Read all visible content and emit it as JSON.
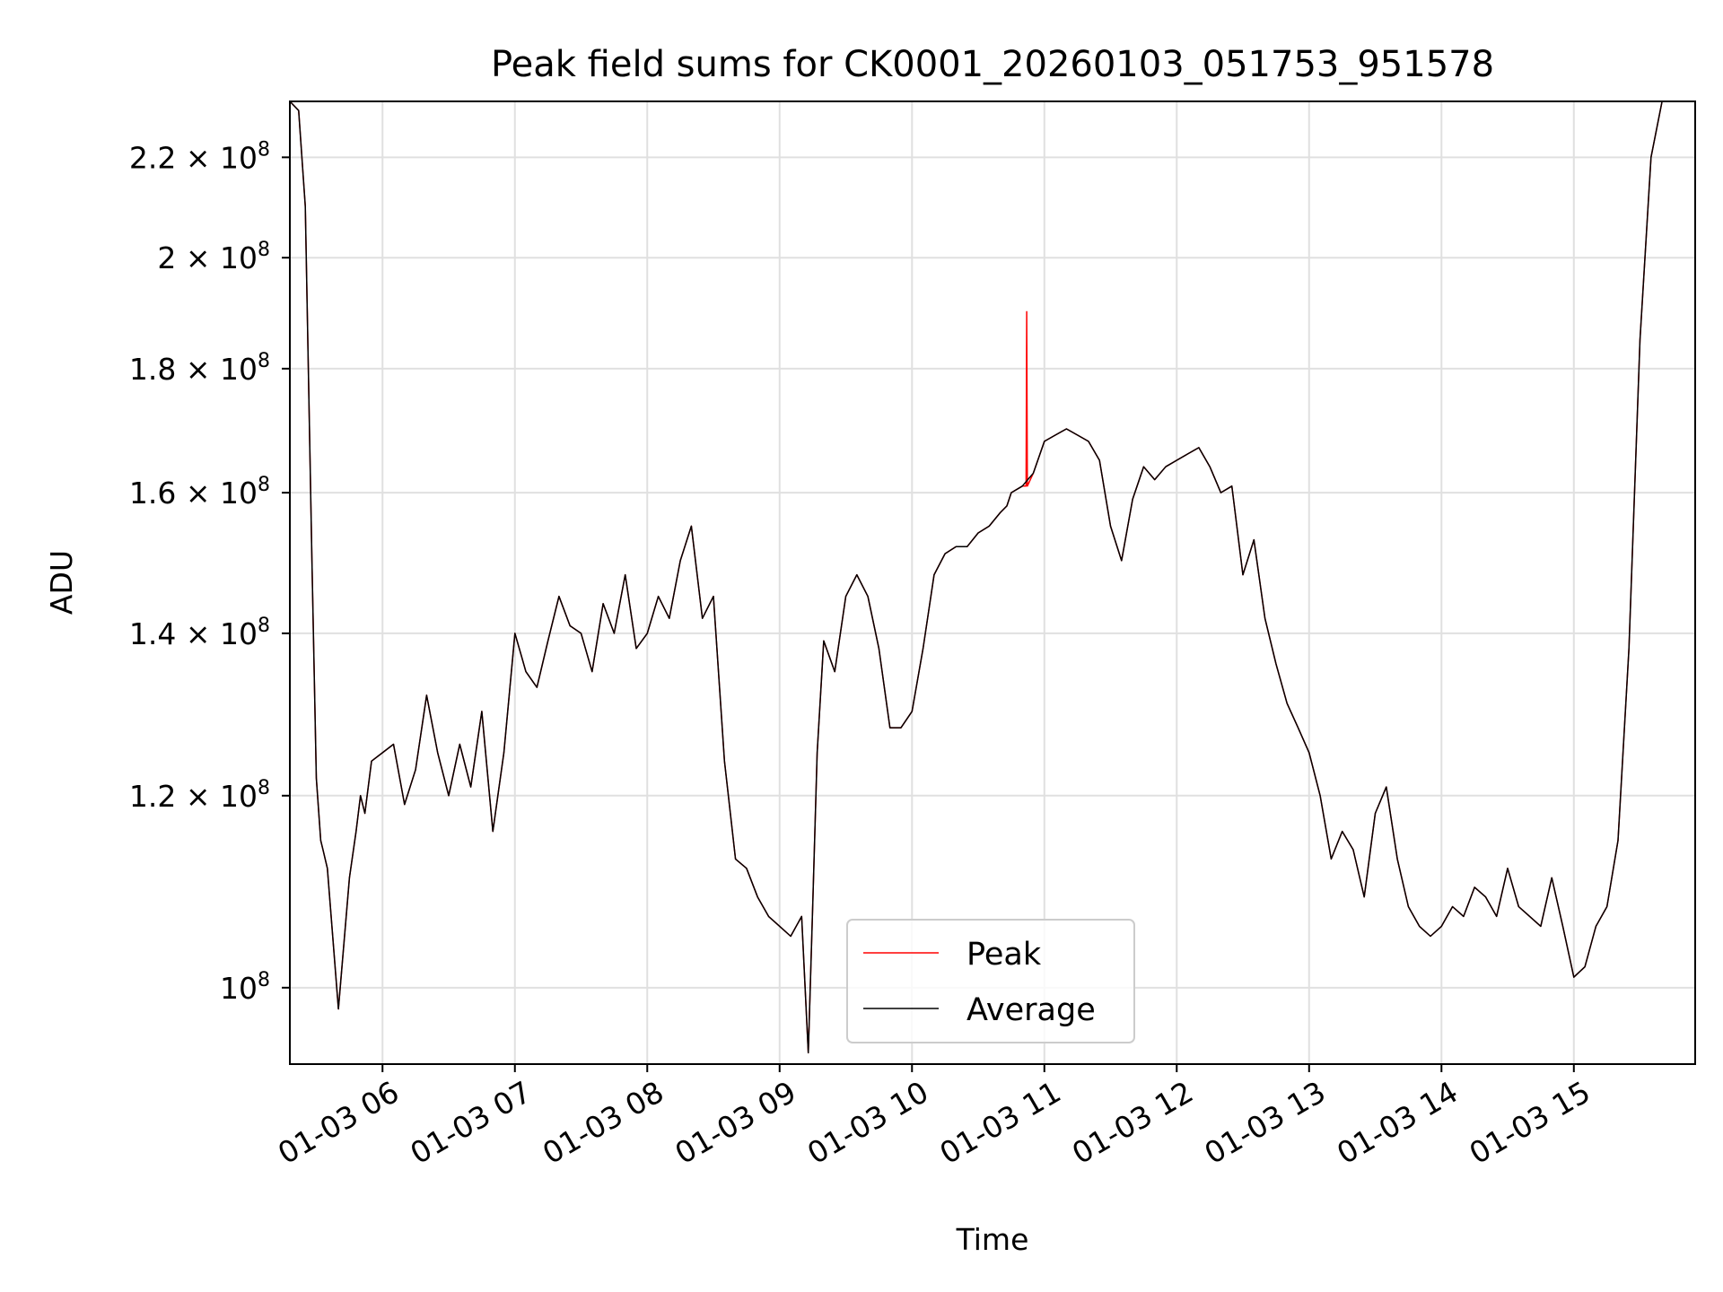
{
  "chart_data": {
    "type": "line",
    "title": "Peak field sums for CK0001_20260103_051753_951578",
    "xlabel": "Time",
    "ylabel": "ADU",
    "yscale": "log",
    "ylim": [
      93000000,
      232000000
    ],
    "xlim": [
      "2026-01-03 05:18",
      "2026-01-03 15:55"
    ],
    "grid": true,
    "legend_position": "bottom-center",
    "x_ticks": [
      "01-03 06",
      "01-03 07",
      "01-03 08",
      "01-03 09",
      "01-03 10",
      "01-03 11",
      "01-03 12",
      "01-03 13",
      "01-03 14",
      "01-03 15"
    ],
    "y_ticks": [
      {
        "value": 100000000,
        "mantissa": "",
        "exponent": "8",
        "base": "10"
      },
      {
        "value": 120000000,
        "mantissa": "1.2 × ",
        "exponent": "8",
        "base": "10"
      },
      {
        "value": 140000000,
        "mantissa": "1.4 × ",
        "exponent": "8",
        "base": "10"
      },
      {
        "value": 160000000,
        "mantissa": "1.6 × ",
        "exponent": "8",
        "base": "10"
      },
      {
        "value": 180000000,
        "mantissa": "1.8 × ",
        "exponent": "8",
        "base": "10"
      },
      {
        "value": 200000000,
        "mantissa": "2 × ",
        "exponent": "8",
        "base": "10"
      },
      {
        "value": 220000000,
        "mantissa": "2.2 × ",
        "exponent": "8",
        "base": "10"
      }
    ],
    "series": [
      {
        "name": "Peak",
        "color": "#ff0000"
      },
      {
        "name": "Average",
        "color": "#000000"
      }
    ],
    "x": [
      "05:18",
      "05:22",
      "05:25",
      "05:28",
      "05:30",
      "05:32",
      "05:33",
      "05:35",
      "05:40",
      "05:45",
      "05:48",
      "05:50",
      "05:52",
      "05:55",
      "06:00",
      "06:05",
      "06:10",
      "06:15",
      "06:20",
      "06:25",
      "06:30",
      "06:35",
      "06:40",
      "06:45",
      "06:50",
      "06:55",
      "07:00",
      "07:03",
      "07:05",
      "07:10",
      "07:15",
      "07:20",
      "07:25",
      "07:30",
      "07:35",
      "07:40",
      "07:45",
      "07:50",
      "07:55",
      "08:00",
      "08:05",
      "08:10",
      "08:15",
      "08:20",
      "08:25",
      "08:30",
      "08:35",
      "08:40",
      "08:45",
      "08:50",
      "08:55",
      "09:00",
      "09:05",
      "09:10",
      "09:13",
      "09:15",
      "09:17",
      "09:20",
      "09:25",
      "09:30",
      "09:35",
      "09:40",
      "09:45",
      "09:50",
      "09:55",
      "10:00",
      "10:05",
      "10:10",
      "10:15",
      "10:20",
      "10:25",
      "10:30",
      "10:35",
      "10:40",
      "10:43",
      "10:45",
      "10:50",
      "10:55",
      "11:00",
      "11:05",
      "11:10",
      "11:15",
      "11:20",
      "11:25",
      "11:30",
      "11:35",
      "11:40",
      "11:45",
      "11:50",
      "11:55",
      "12:00",
      "12:05",
      "12:10",
      "12:15",
      "12:20",
      "12:25",
      "12:30",
      "12:35",
      "12:40",
      "12:45",
      "12:50",
      "12:55",
      "13:00",
      "13:05",
      "13:10",
      "13:15",
      "13:20",
      "13:25",
      "13:30",
      "13:35",
      "13:40",
      "13:45",
      "13:50",
      "13:55",
      "14:00",
      "14:05",
      "14:10",
      "14:15",
      "14:20",
      "14:25",
      "14:30",
      "14:35",
      "14:40",
      "14:45",
      "14:50",
      "14:55",
      "15:00",
      "15:05",
      "15:10",
      "15:15",
      "15:20",
      "15:25",
      "15:30",
      "15:35",
      "15:40",
      "15:45",
      "15:50",
      "15:55"
    ],
    "y_average": [
      232000000,
      230000000,
      210000000,
      150000000,
      122000000,
      115000000,
      114000000,
      112000000,
      98000000,
      111000000,
      116000000,
      120000000,
      118000000,
      124000000,
      125000000,
      126000000,
      119000000,
      123000000,
      132000000,
      125000000,
      120000000,
      126000000,
      121000000,
      130000000,
      116000000,
      125000000,
      140000000,
      137000000,
      135000000,
      133000000,
      139000000,
      145000000,
      141000000,
      140000000,
      135000000,
      144000000,
      140000000,
      148000000,
      138000000,
      140000000,
      145000000,
      142000000,
      150000000,
      155000000,
      142000000,
      145000000,
      124000000,
      113000000,
      112000000,
      109000000,
      107000000,
      106000000,
      105000000,
      107000000,
      94000000,
      108000000,
      125000000,
      139000000,
      135000000,
      145000000,
      148000000,
      145000000,
      138000000,
      128000000,
      128000000,
      130000000,
      138000000,
      148000000,
      151000000,
      152000000,
      152000000,
      154000000,
      155000000,
      157000000,
      158000000,
      160000000,
      161000000,
      163000000,
      168000000,
      169000000,
      170000000,
      169000000,
      168000000,
      165000000,
      155000000,
      150000000,
      159000000,
      164000000,
      162000000,
      164000000,
      165000000,
      166000000,
      167000000,
      164000000,
      160000000,
      161000000,
      148000000,
      153000000,
      142000000,
      136000000,
      131000000,
      128000000,
      125000000,
      120000000,
      113000000,
      116000000,
      114000000,
      109000000,
      118000000,
      121000000,
      113000000,
      108000000,
      106000000,
      105000000,
      106000000,
      108000000,
      107000000,
      110000000,
      109000000,
      107000000,
      112000000,
      108000000,
      107000000,
      106000000,
      111000000,
      106000000,
      101000000,
      102000000,
      106000000,
      108000000,
      115000000,
      138000000,
      185000000,
      220000000,
      232000000,
      232000000,
      232000000,
      232000000
    ],
    "spike": {
      "x": "10:52",
      "peak": 190000000,
      "average": 161000000
    }
  }
}
